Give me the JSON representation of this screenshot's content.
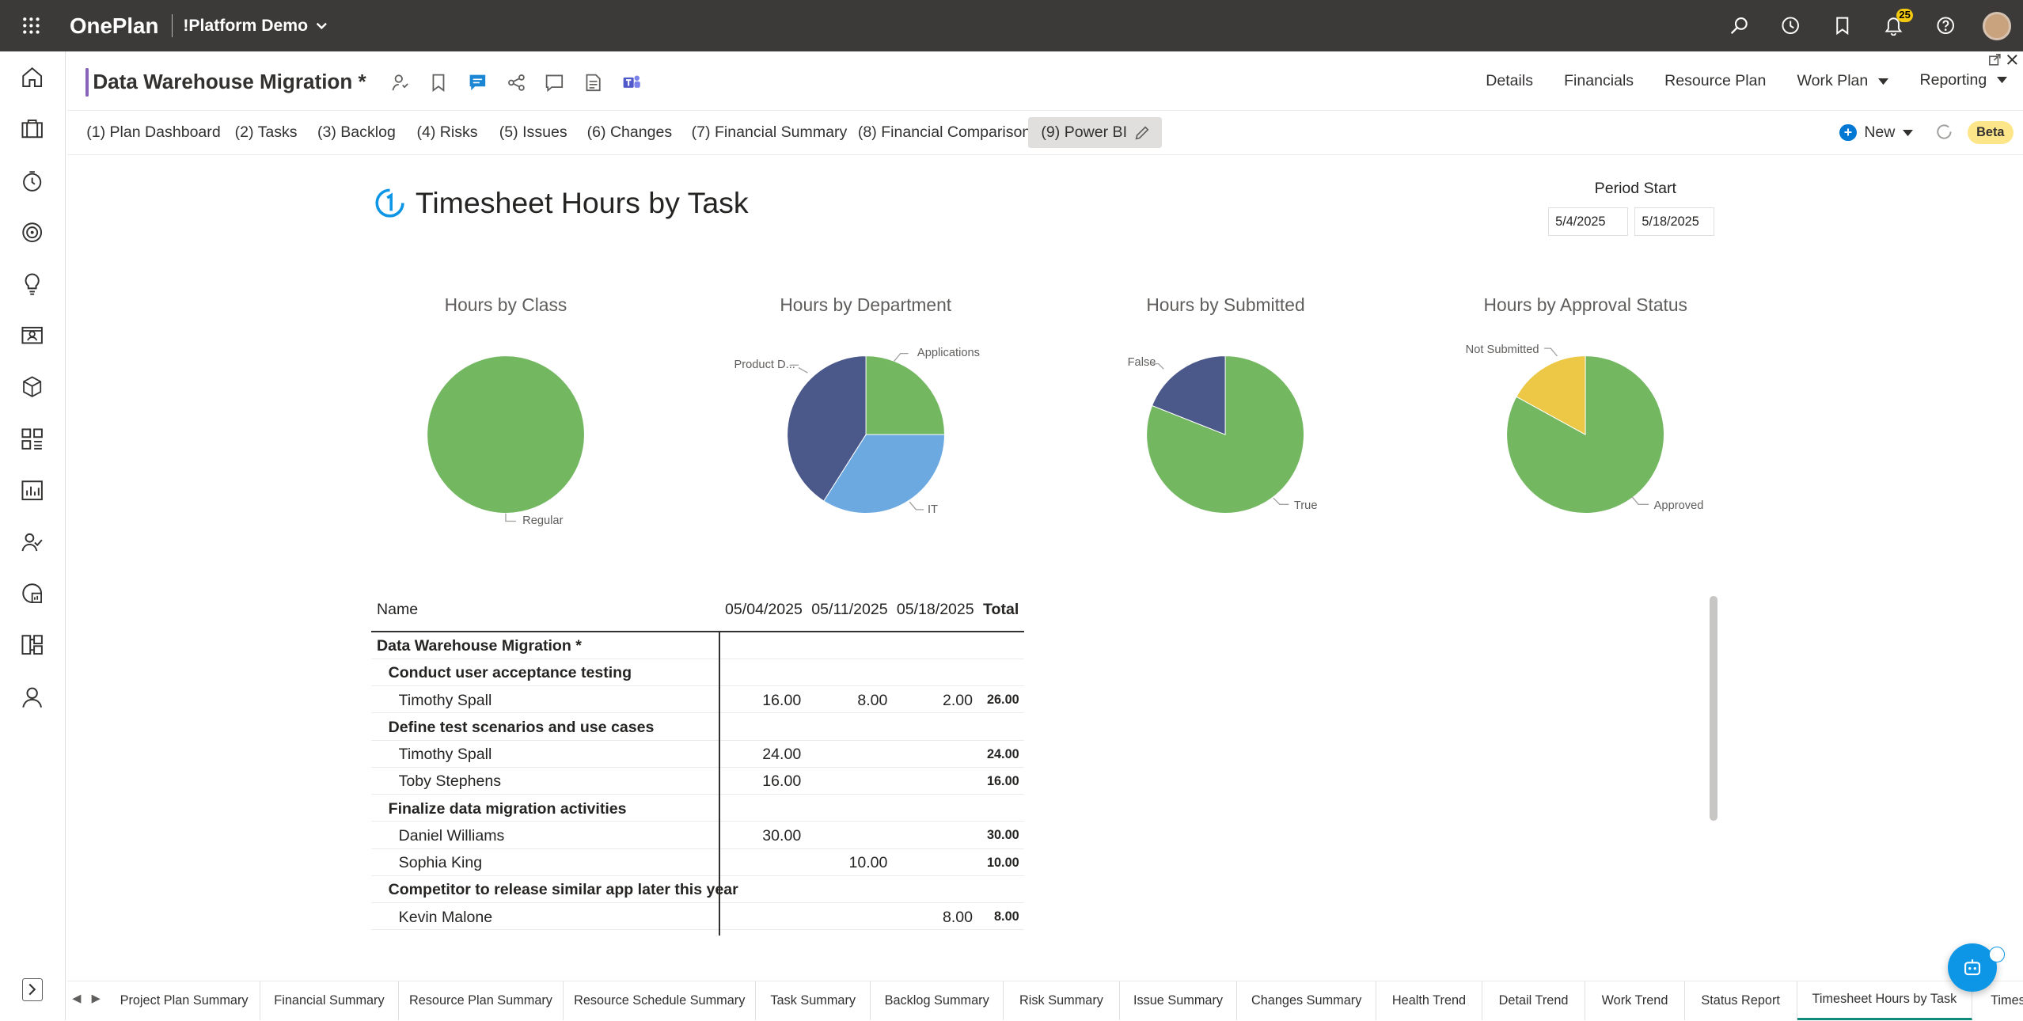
{
  "app": {
    "brand": "OnePlan",
    "workspace": "!Platform Demo",
    "notification_count": "25"
  },
  "plan": {
    "title": "Data Warehouse Migration *"
  },
  "header_nav": [
    {
      "label": "Details"
    },
    {
      "label": "Financials"
    },
    {
      "label": "Resource Plan"
    },
    {
      "label": "Work Plan"
    },
    {
      "label": "Reporting"
    }
  ],
  "report_tabs": [
    {
      "label": "(1) Plan Dashboard"
    },
    {
      "label": "(2) Tasks"
    },
    {
      "label": "(3) Backlog"
    },
    {
      "label": "(4) Risks"
    },
    {
      "label": "(5) Issues"
    },
    {
      "label": "(6) Changes"
    },
    {
      "label": "(7) Financial Summary"
    },
    {
      "label": "(8) Financial Comparison"
    },
    {
      "label": "(9) Power BI"
    }
  ],
  "toolbar": {
    "new_label": "New",
    "beta_label": "Beta"
  },
  "report": {
    "title": "Timesheet Hours by Task",
    "period_label": "Period Start",
    "date_from": "5/4/2025",
    "date_to": "5/18/2025"
  },
  "chart_data": [
    {
      "type": "pie",
      "title": "Hours by Class",
      "labels": [
        "Regular"
      ],
      "values": [
        100
      ],
      "colors": [
        "#73b761"
      ]
    },
    {
      "type": "pie",
      "title": "Hours by Department",
      "labels": [
        "Applications",
        "IT",
        "Product D..."
      ],
      "values": [
        25,
        34,
        41
      ],
      "colors": [
        "#73b761",
        "#6ba9e0",
        "#4a588a"
      ]
    },
    {
      "type": "pie",
      "title": "Hours by Submitted",
      "labels": [
        "True",
        "False"
      ],
      "values": [
        81,
        19
      ],
      "colors": [
        "#73b761",
        "#4a588a"
      ]
    },
    {
      "type": "pie",
      "title": "Hours by Approval Status",
      "labels": [
        "Approved",
        "Not Submitted"
      ],
      "values": [
        83,
        17
      ],
      "colors": [
        "#73b761",
        "#ecc846"
      ]
    }
  ],
  "matrix": {
    "headers": {
      "name": "Name",
      "d1": "05/04/2025",
      "d2": "05/11/2025",
      "d3": "05/18/2025",
      "total": "Total"
    },
    "rows": [
      {
        "level": 0,
        "name": "Data Warehouse Migration *",
        "d1": "",
        "d2": "",
        "d3": "",
        "total": ""
      },
      {
        "level": 1,
        "name": "Conduct user acceptance testing",
        "d1": "",
        "d2": "",
        "d3": "",
        "total": ""
      },
      {
        "level": 2,
        "name": "Timothy Spall",
        "d1": "16.00",
        "d2": "8.00",
        "d3": "2.00",
        "total": "26.00"
      },
      {
        "level": 1,
        "name": "Define test scenarios and use cases",
        "d1": "",
        "d2": "",
        "d3": "",
        "total": ""
      },
      {
        "level": 2,
        "name": "Timothy Spall",
        "d1": "24.00",
        "d2": "",
        "d3": "",
        "total": "24.00"
      },
      {
        "level": 2,
        "name": "Toby Stephens",
        "d1": "16.00",
        "d2": "",
        "d3": "",
        "total": "16.00"
      },
      {
        "level": 1,
        "name": "Finalize data migration activities",
        "d1": "",
        "d2": "",
        "d3": "",
        "total": ""
      },
      {
        "level": 2,
        "name": "Daniel Williams",
        "d1": "30.00",
        "d2": "",
        "d3": "",
        "total": "30.00"
      },
      {
        "level": 2,
        "name": "Sophia King",
        "d1": "",
        "d2": "10.00",
        "d3": "",
        "total": "10.00"
      },
      {
        "level": 1,
        "name": "Competitor to release similar app later this year",
        "d1": "",
        "d2": "",
        "d3": "",
        "total": ""
      },
      {
        "level": 2,
        "name": "Kevin Malone",
        "d1": "",
        "d2": "",
        "d3": "8.00",
        "total": "8.00"
      }
    ]
  },
  "bottom_tabs": [
    {
      "label": "Project Plan Summary"
    },
    {
      "label": "Financial Summary"
    },
    {
      "label": "Resource Plan Summary"
    },
    {
      "label": "Resource Schedule Summary"
    },
    {
      "label": "Task Summary"
    },
    {
      "label": "Backlog Summary"
    },
    {
      "label": "Risk Summary"
    },
    {
      "label": "Issue Summary"
    },
    {
      "label": "Changes Summary"
    },
    {
      "label": "Health Trend"
    },
    {
      "label": "Detail Trend"
    },
    {
      "label": "Work Trend"
    },
    {
      "label": "Status Report"
    },
    {
      "label": "Timesheet Hours by Task"
    },
    {
      "label": "Times"
    }
  ]
}
